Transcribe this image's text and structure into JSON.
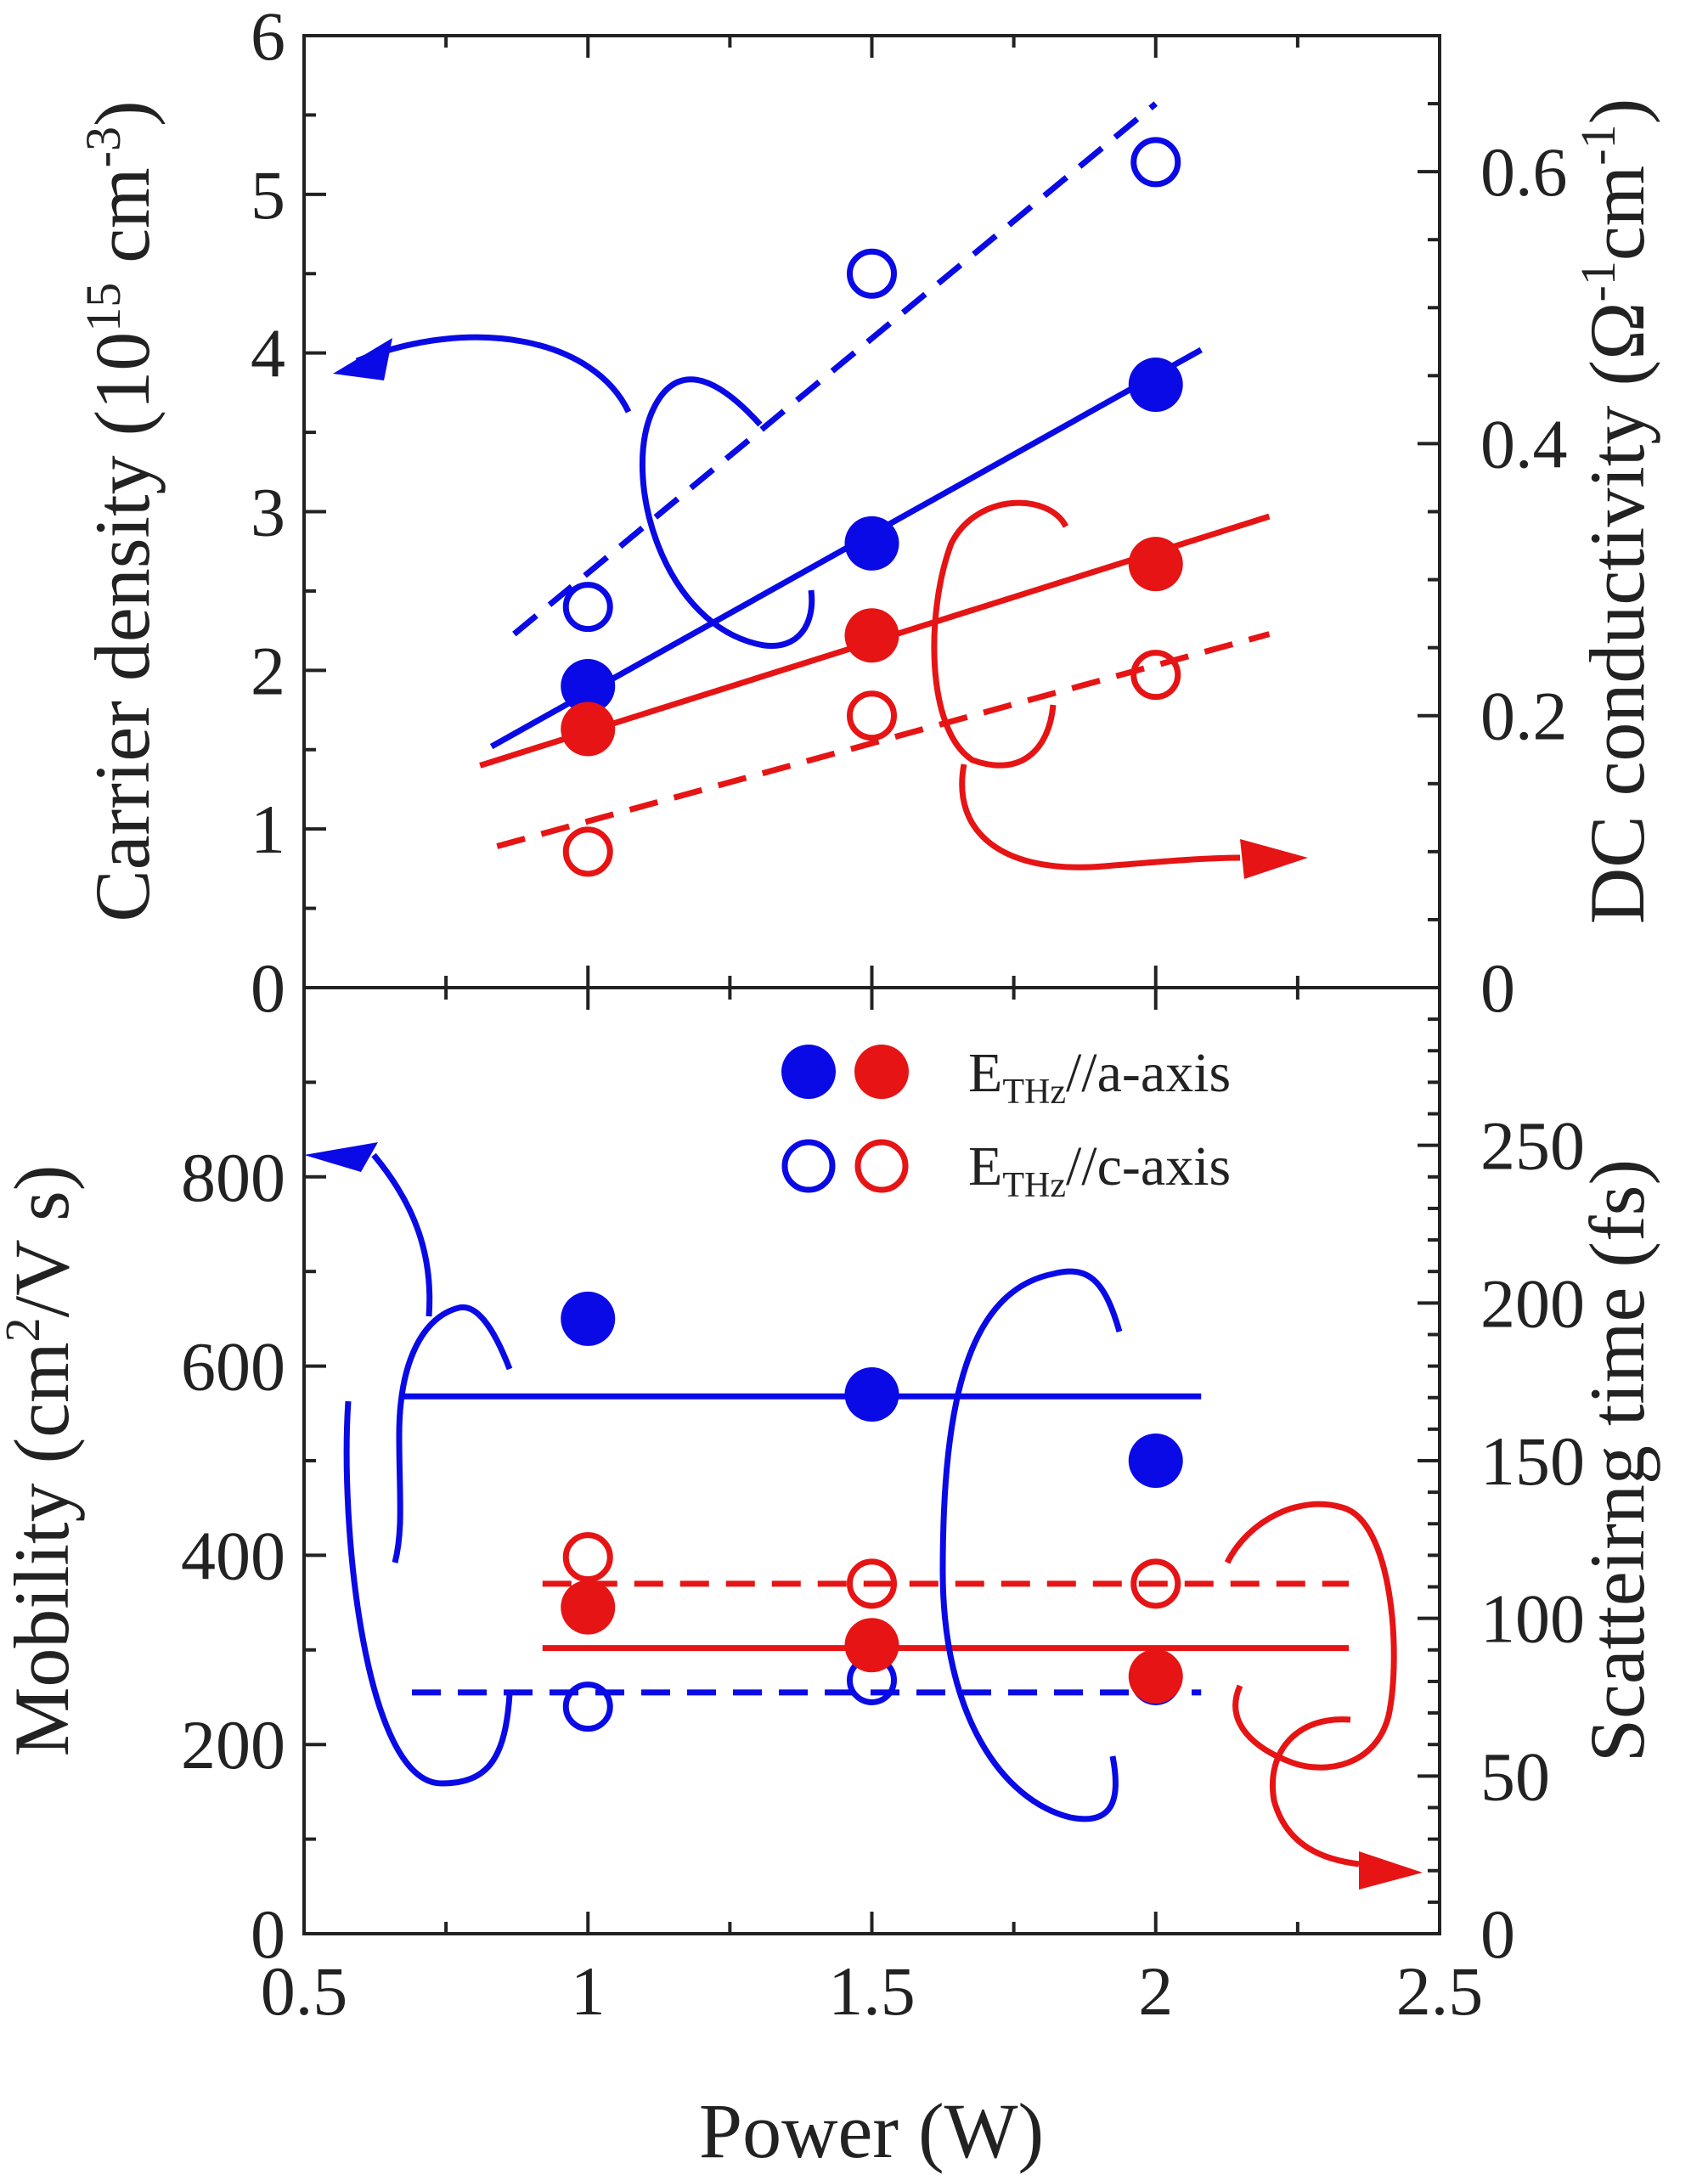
{
  "colors": {
    "a_axis": "#0a0ae6",
    "c_axis": "#e61414",
    "axis": "#222222"
  },
  "legend": {
    "row1": {
      "prefix": "E",
      "sub": "THz",
      "suffix": "//a-axis"
    },
    "row2": {
      "prefix": "E",
      "sub": "THz",
      "suffix": "//c-axis"
    }
  },
  "chart_data": [
    {
      "id": "top",
      "type": "scatter",
      "ylabel_left": {
        "text": "Carrier density",
        "unit_pre": "(10",
        "unit_sup": "15",
        "unit_mid": " cm",
        "unit_sup2": "-3",
        "unit_post": ")"
      },
      "ylabel_right": {
        "text": "DC conductivity",
        "unit_pre": "(Ω",
        "unit_sup": "-1",
        "unit_mid": "cm",
        "unit_sup2": "-1",
        "unit_post": ")"
      },
      "xlim": [
        0.5,
        2.5
      ],
      "ylim_left": [
        0,
        6
      ],
      "ylim_right": [
        0,
        0.7
      ],
      "yticks_left": [
        "0",
        "1",
        "2",
        "3",
        "4",
        "5",
        "6"
      ],
      "yticks_right": [
        "0",
        "0.2",
        "0.4",
        "0.6"
      ],
      "series": [
        {
          "name": "a-axis carrier density",
          "axis": "left",
          "style": "filled",
          "color_key": "a_axis",
          "x": [
            1,
            1.5,
            2
          ],
          "y": [
            1.9,
            2.8,
            3.8
          ],
          "fit": {
            "x": [
              0.83,
              2.08
            ],
            "y": [
              1.52,
              4.02
            ],
            "dash": false
          }
        },
        {
          "name": "a-axis DC conductivity",
          "axis": "right",
          "style": "open",
          "color_key": "a_axis",
          "x": [
            1,
            1.5,
            2
          ],
          "y": [
            0.28,
            0.525,
            0.607
          ],
          "fit": {
            "x": [
              0.87,
              2.0
            ],
            "y": [
              0.26,
              0.65
            ],
            "dash": true
          }
        },
        {
          "name": "c-axis carrier density",
          "axis": "left",
          "style": "filled",
          "color_key": "c_axis",
          "x": [
            1,
            1.5,
            2
          ],
          "y": [
            1.63,
            2.22,
            2.67
          ],
          "fit": {
            "x": [
              0.81,
              2.2
            ],
            "y": [
              1.4,
              2.97
            ],
            "dash": false
          }
        },
        {
          "name": "c-axis DC conductivity",
          "axis": "right",
          "style": "open",
          "color_key": "c_axis",
          "x": [
            1,
            1.5,
            2
          ],
          "y": [
            0.1,
            0.2,
            0.23
          ],
          "fit": {
            "x": [
              0.84,
              2.2
            ],
            "y": [
              0.104,
              0.26
            ],
            "dash": true
          }
        }
      ]
    },
    {
      "id": "bottom",
      "type": "scatter",
      "xlabel": "Power (W)",
      "ylabel_left": {
        "text": "Mobility",
        "unit_pre": "(cm",
        "unit_sup": "2",
        "unit_post": "/V s)"
      },
      "ylabel_right": {
        "text": "Scatteirng time (fs)"
      },
      "xlim": [
        0.5,
        2.5
      ],
      "xticks": [
        "0.5",
        "1",
        "1.5",
        "2",
        "2.5"
      ],
      "ylim_left": [
        0,
        1000
      ],
      "ylim_right": [
        0,
        300
      ],
      "yticks_left": [
        "0",
        "200",
        "400",
        "600",
        "800"
      ],
      "yticks_right": [
        "0",
        "50",
        "100",
        "150",
        "200",
        "250"
      ],
      "series": [
        {
          "name": "a-axis mobility",
          "axis": "left",
          "style": "filled",
          "color_key": "a_axis",
          "x": [
            1,
            1.5,
            2
          ],
          "y": [
            650,
            570,
            500
          ],
          "fit": {
            "x": [
              0.67,
              2.08
            ],
            "y": [
              568,
              568
            ],
            "dash": false
          }
        },
        {
          "name": "a-axis scattering time",
          "axis": "left",
          "style": "open",
          "color_key": "a_axis",
          "x": [
            1,
            1.5,
            2
          ],
          "y": [
            240,
            268,
            268
          ],
          "fit": {
            "x": [
              0.69,
              2.08
            ],
            "y": [
              255,
              255
            ],
            "dash": true
          }
        },
        {
          "name": "c-axis mobility",
          "axis": "left",
          "style": "filled",
          "color_key": "c_axis",
          "x": [
            1,
            1.5,
            2
          ],
          "y": [
            345,
            305,
            272
          ],
          "fit": {
            "x": [
              0.92,
              2.34
            ],
            "y": [
              302,
              302
            ],
            "dash": false
          }
        },
        {
          "name": "c-axis scattering time",
          "axis": "left",
          "style": "open",
          "color_key": "c_axis",
          "x": [
            1,
            1.5,
            2
          ],
          "y": [
            398,
            370,
            370
          ],
          "fit": {
            "x": [
              0.92,
              2.34
            ],
            "y": [
              370,
              370
            ],
            "dash": true
          }
        }
      ]
    }
  ]
}
